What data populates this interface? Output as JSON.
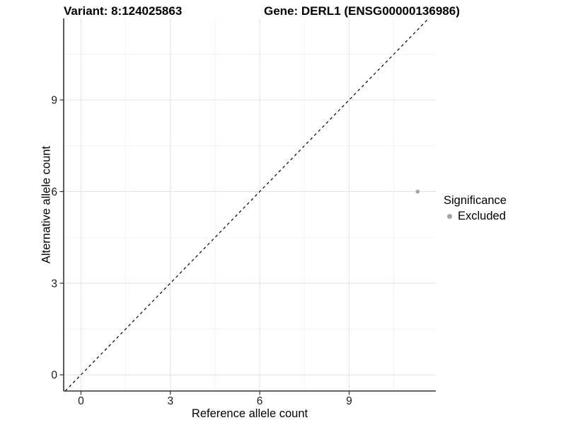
{
  "chart_data": {
    "type": "scatter",
    "title_left": "Variant: 8:124025863",
    "title_right": "Gene: DERL1 (ENSG00000136986)",
    "xlabel": "Reference allele count",
    "ylabel": "Alternative allele count",
    "xlim": [
      -0.58,
      11.91
    ],
    "ylim": [
      -0.53,
      11.67
    ],
    "xticks": [
      0,
      3,
      6,
      9
    ],
    "yticks": [
      0,
      3,
      6,
      9
    ],
    "xticks_minor": [
      1.5,
      4.5,
      7.5,
      10.5
    ],
    "yticks_minor": [
      1.5,
      4.5,
      7.5,
      10.5
    ],
    "grid": true,
    "legend": {
      "title": "Significance",
      "position": "right",
      "entries": [
        {
          "label": "Excluded",
          "color": "#a4a4a4"
        }
      ]
    },
    "series": [
      {
        "name": "Excluded",
        "color": "#a4a4a4",
        "points": [
          [
            11.3,
            6.0
          ]
        ]
      }
    ],
    "reference_line": {
      "slope": 1,
      "intercept": 0,
      "style": "dashed",
      "color": "#000000"
    },
    "point_radius": 2.8
  },
  "colors": {
    "background": "#ffffff",
    "grid_major": "#e4e4e4",
    "grid_minor": "#efefef",
    "axis_line": "#333333",
    "tick_label": "#1a1a1a",
    "text": "#000000"
  }
}
